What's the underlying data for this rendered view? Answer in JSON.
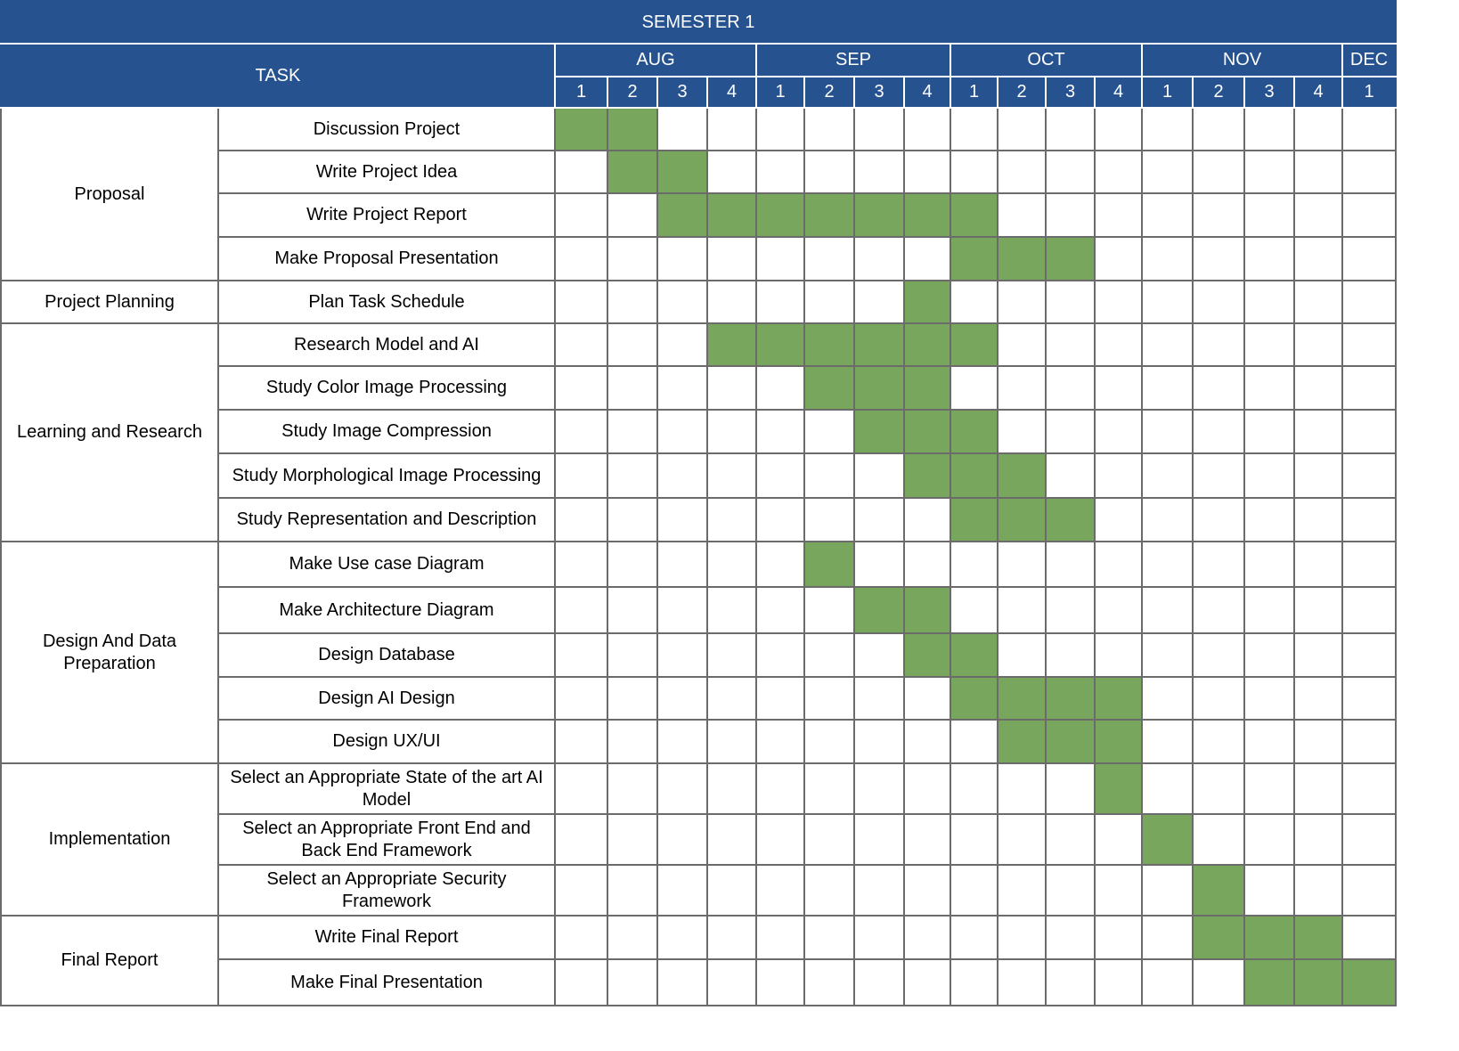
{
  "semester_label": "SEMESTER 1",
  "task_header": "TASK",
  "months": [
    {
      "label": "AUG",
      "weeks": [
        "1",
        "2",
        "3",
        "4"
      ]
    },
    {
      "label": "SEP",
      "weeks": [
        "1",
        "2",
        "3",
        "4"
      ]
    },
    {
      "label": "OCT",
      "weeks": [
        "1",
        "2",
        "3",
        "4"
      ]
    },
    {
      "label": "NOV",
      "weeks": [
        "1",
        "2",
        "3",
        "4"
      ]
    },
    {
      "label": "DEC",
      "weeks": [
        "1"
      ]
    }
  ],
  "colors": {
    "header_bg": "#26528f",
    "header_text": "#ffffff",
    "bar_fill": "#77a65c",
    "grid": "#6b6b6b"
  },
  "groups": [
    {
      "name": "Proposal",
      "tasks": [
        {
          "name": "Discussion Project",
          "active": [
            0,
            1
          ]
        },
        {
          "name": "Write Project Idea",
          "active": [
            1,
            2
          ]
        },
        {
          "name": "Write Project Report",
          "active": [
            2,
            3,
            4,
            5,
            6,
            7,
            8
          ]
        },
        {
          "name": "Make Proposal Presentation",
          "active": [
            8,
            9,
            10
          ]
        }
      ]
    },
    {
      "name": "Project Planning",
      "tasks": [
        {
          "name": "Plan Task Schedule",
          "active": [
            7
          ]
        }
      ]
    },
    {
      "name": "Learning and Research",
      "tasks": [
        {
          "name": "Research Model and AI",
          "active": [
            3,
            4,
            5,
            6,
            7,
            8
          ]
        },
        {
          "name": "Study Color Image Processing",
          "active": [
            5,
            6,
            7
          ]
        },
        {
          "name": "Study Image Compression",
          "active": [
            6,
            7,
            8
          ]
        },
        {
          "name": "Study Morphological Image Processing",
          "active": [
            7,
            8,
            9
          ]
        },
        {
          "name": "Study Representation and Description",
          "active": [
            8,
            9,
            10
          ]
        }
      ]
    },
    {
      "name": "Design And Data Preparation",
      "tasks": [
        {
          "name": "Make Use case Diagram",
          "active": [
            5
          ]
        },
        {
          "name": "Make Architecture Diagram",
          "active": [
            6,
            7
          ]
        },
        {
          "name": "Design Database",
          "active": [
            7,
            8
          ]
        },
        {
          "name": "Design AI Design",
          "active": [
            8,
            9,
            10,
            11
          ]
        },
        {
          "name": "Design UX/UI",
          "active": [
            9,
            10,
            11
          ]
        }
      ]
    },
    {
      "name": "Implementation",
      "tasks": [
        {
          "name": "Select an Appropriate State of the art AI Model",
          "active": [
            11
          ]
        },
        {
          "name": "Select an Appropriate Front End and Back End Framework",
          "active": [
            12
          ]
        },
        {
          "name": "Select an Appropriate Security Framework",
          "active": [
            13
          ]
        }
      ]
    },
    {
      "name": "Final Report",
      "tasks": [
        {
          "name": "Write Final Report",
          "active": [
            13,
            14,
            15
          ]
        },
        {
          "name": "Make Final Presentation",
          "active": [
            14,
            15,
            16
          ]
        }
      ]
    }
  ]
}
